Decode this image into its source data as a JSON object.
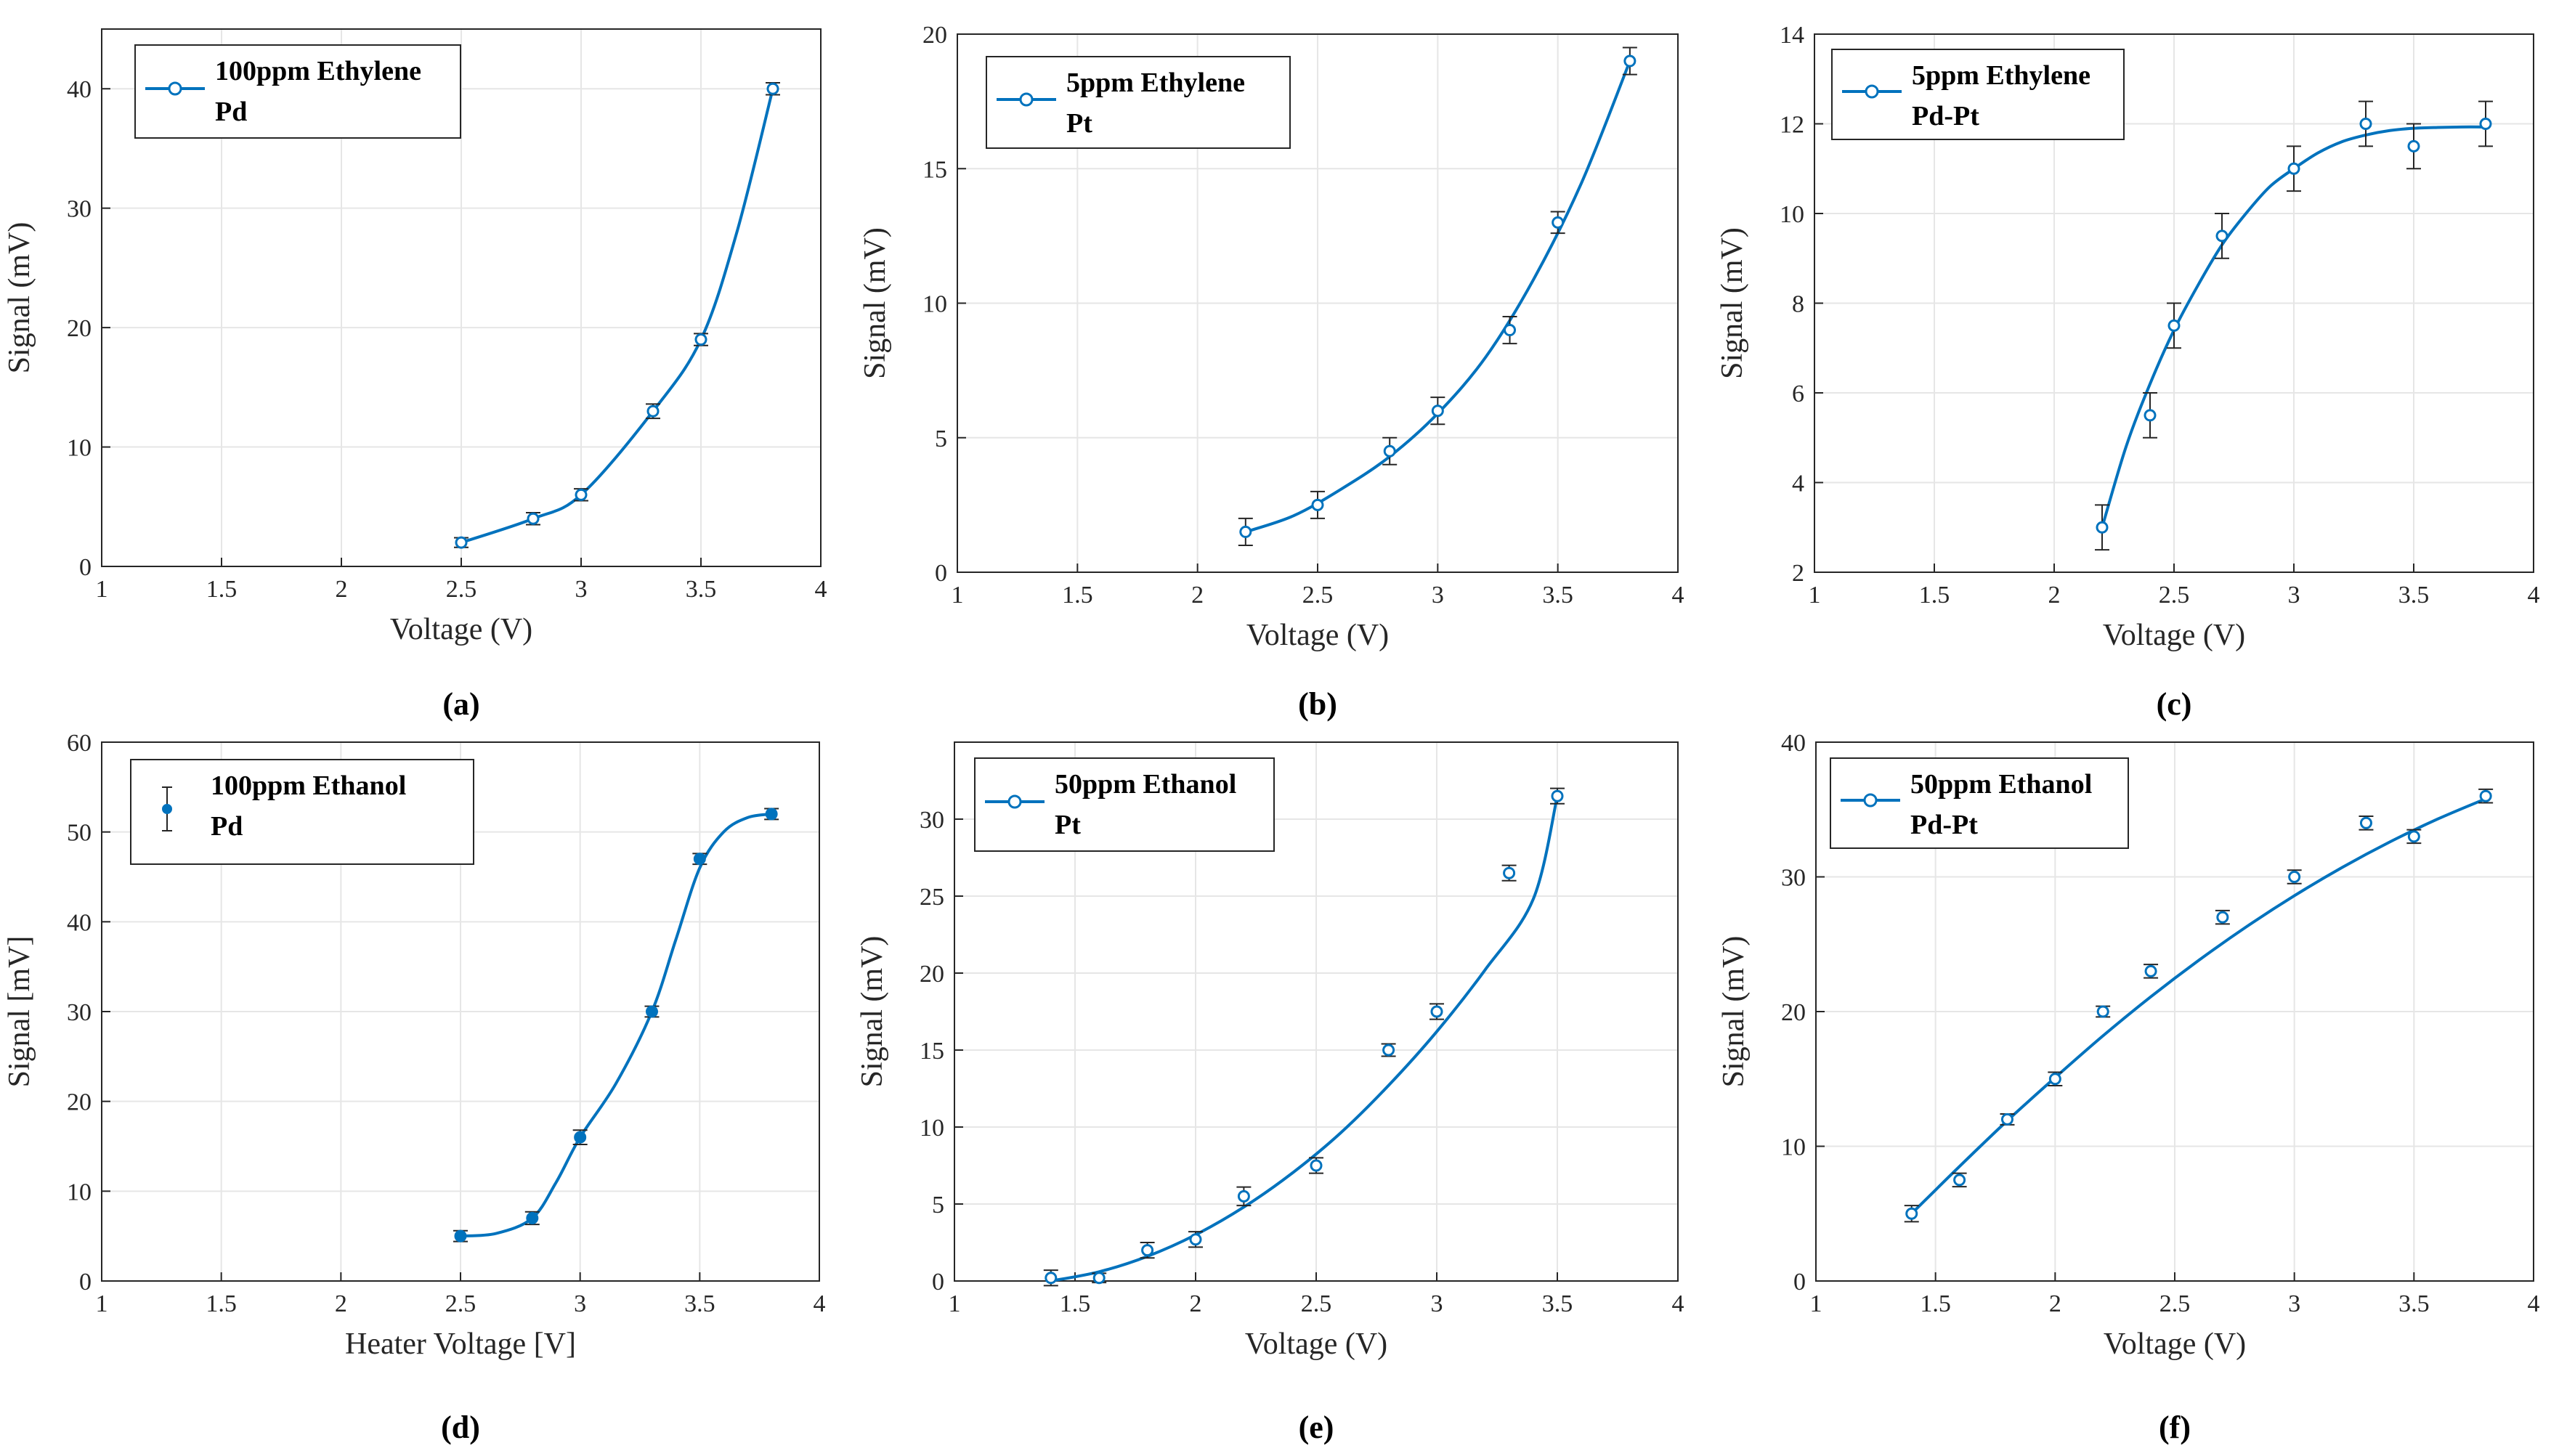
{
  "figure": {
    "panels": [
      {
        "id": "a",
        "caption": "(a)",
        "legend": [
          "100ppm Ethylene",
          "Pd"
        ],
        "marker": "circle"
      },
      {
        "id": "b",
        "caption": "(b)",
        "legend": [
          "5ppm Ethylene",
          "Pt"
        ],
        "marker": "circle"
      },
      {
        "id": "c",
        "caption": "(c)",
        "legend": [
          "5ppm Ethylene",
          "Pd-Pt"
        ],
        "marker": "circle"
      },
      {
        "id": "d",
        "caption": "(d)",
        "legend": [
          "100ppm Ethanol",
          "Pd"
        ],
        "marker": "errorbar-dot"
      },
      {
        "id": "e",
        "caption": "(e)",
        "legend": [
          "50ppm Ethanol",
          "Pt"
        ],
        "marker": "circle"
      },
      {
        "id": "f",
        "caption": "(f)",
        "legend": [
          "50ppm Ethanol",
          "Pd-Pt"
        ],
        "marker": "circle"
      }
    ]
  },
  "colors": {
    "series": "#0072BD",
    "axis": "#262626",
    "grid": "#e6e6e6"
  },
  "chart_data": [
    {
      "type": "line",
      "title": "(a)",
      "xlabel": "Voltage (V)",
      "ylabel": "Signal (mV)",
      "xlim": [
        1,
        4
      ],
      "ylim": [
        0,
        45
      ],
      "xticks": [
        1,
        1.5,
        2,
        2.5,
        3,
        3.5,
        4
      ],
      "xticklabels": [
        "1",
        "1.5",
        "2",
        "2.5",
        "3",
        "3.5",
        "4"
      ],
      "yticks": [
        0,
        10,
        20,
        30,
        40
      ],
      "yticklabels": [
        "0",
        "10",
        "20",
        "30",
        "40"
      ],
      "grid": true,
      "series": [
        {
          "name": "100ppm Ethylene Pd",
          "x": [
            2.5,
            2.8,
            3.0,
            3.3,
            3.5,
            3.8
          ],
          "y": [
            2,
            4,
            6,
            13,
            19,
            40
          ],
          "err": [
            0.4,
            0.5,
            0.5,
            0.6,
            0.5,
            0.5
          ]
        }
      ],
      "fit": {
        "x": [
          2.5,
          2.8,
          3.0,
          3.3,
          3.5,
          3.65,
          3.8
        ],
        "y": [
          2,
          4,
          6,
          13,
          19,
          28,
          40
        ]
      }
    },
    {
      "type": "line",
      "title": "(b)",
      "xlabel": "Voltage (V)",
      "ylabel": "Signal (mV)",
      "xlim": [
        1,
        4
      ],
      "ylim": [
        0,
        20
      ],
      "xticks": [
        1,
        1.5,
        2,
        2.5,
        3,
        3.5,
        4
      ],
      "xticklabels": [
        "1",
        "1.5",
        "2",
        "2.5",
        "3",
        "3.5",
        "4"
      ],
      "yticks": [
        0,
        5,
        10,
        15,
        20
      ],
      "yticklabels": [
        "0",
        "5",
        "10",
        "15",
        "20"
      ],
      "grid": true,
      "series": [
        {
          "name": "5ppm Ethylene Pt",
          "x": [
            2.2,
            2.5,
            2.8,
            3.0,
            3.3,
            3.5,
            3.8
          ],
          "y": [
            1.5,
            2.5,
            4.5,
            6.0,
            9.0,
            13.0,
            19.0
          ],
          "err": [
            0.5,
            0.5,
            0.5,
            0.5,
            0.5,
            0.4,
            0.5
          ]
        }
      ],
      "fit": {
        "x": [
          2.2,
          2.4,
          2.6,
          2.8,
          3.0,
          3.2,
          3.4,
          3.6,
          3.8
        ],
        "y": [
          1.5,
          2.1,
          3.1,
          4.3,
          5.9,
          8.0,
          10.9,
          14.5,
          19.0
        ]
      }
    },
    {
      "type": "line",
      "title": "(c)",
      "xlabel": "Voltage (V)",
      "ylabel": "Signal (mV)",
      "xlim": [
        1,
        4
      ],
      "ylim": [
        2,
        14
      ],
      "xticks": [
        1,
        1.5,
        2,
        2.5,
        3,
        3.5,
        4
      ],
      "xticklabels": [
        "1",
        "1.5",
        "2",
        "2.5",
        "3",
        "3.5",
        "4"
      ],
      "yticks": [
        2,
        4,
        6,
        8,
        10,
        12,
        14
      ],
      "yticklabels": [
        "2",
        "4",
        "6",
        "8",
        "10",
        "12",
        "14"
      ],
      "grid": true,
      "series": [
        {
          "name": "5ppm Ethylene Pd-Pt",
          "x": [
            2.2,
            2.4,
            2.5,
            2.7,
            3.0,
            3.3,
            3.5,
            3.8
          ],
          "y": [
            3.0,
            5.5,
            7.5,
            9.5,
            11.0,
            12.0,
            11.5,
            12.0
          ],
          "err": [
            0.5,
            0.5,
            0.5,
            0.5,
            0.5,
            0.5,
            0.5,
            0.5
          ]
        }
      ],
      "fit": {
        "x": [
          2.2,
          2.3,
          2.4,
          2.5,
          2.6,
          2.7,
          2.8,
          2.9,
          3.0,
          3.1,
          3.2,
          3.3,
          3.4,
          3.5,
          3.6,
          3.7,
          3.8
        ],
        "y": [
          3.0,
          4.8,
          6.2,
          7.4,
          8.4,
          9.3,
          10.0,
          10.6,
          11.0,
          11.35,
          11.6,
          11.75,
          11.85,
          11.9,
          11.92,
          11.93,
          11.93
        ]
      }
    },
    {
      "type": "line",
      "title": "(d)",
      "xlabel": "Heater Voltage [V]",
      "ylabel": "Signal [mV]",
      "xlim": [
        1,
        4
      ],
      "ylim": [
        0,
        60
      ],
      "xticks": [
        1,
        1.5,
        2,
        2.5,
        3,
        3.5,
        4
      ],
      "xticklabels": [
        "1",
        "1.5",
        "2",
        "2.5",
        "3",
        "3.5",
        "4"
      ],
      "yticks": [
        0,
        10,
        20,
        30,
        40,
        50,
        60
      ],
      "yticklabels": [
        "0",
        "10",
        "20",
        "30",
        "40",
        "50",
        "60"
      ],
      "grid": true,
      "series": [
        {
          "name": "100ppm Ethanol Pd",
          "x": [
            2.5,
            2.8,
            3.0,
            3.3,
            3.5,
            3.8
          ],
          "y": [
            5,
            7,
            16,
            30,
            47,
            52
          ],
          "err": [
            0.6,
            0.7,
            0.8,
            0.6,
            0.6,
            0.6
          ]
        }
      ],
      "fit": {
        "x": [
          2.5,
          2.65,
          2.8,
          2.9,
          3.0,
          3.15,
          3.3,
          3.4,
          3.5,
          3.6,
          3.7,
          3.8
        ],
        "y": [
          5,
          5.3,
          7,
          11,
          16,
          22,
          30,
          38,
          46,
          50,
          51.6,
          52
        ]
      }
    },
    {
      "type": "line",
      "title": "(e)",
      "xlabel": "Voltage (V)",
      "ylabel": "Signal (mV)",
      "xlim": [
        1,
        4
      ],
      "ylim": [
        0,
        35
      ],
      "xticks": [
        1,
        1.5,
        2,
        2.5,
        3,
        3.5,
        4
      ],
      "xticklabels": [
        "1",
        "1.5",
        "2",
        "2.5",
        "3",
        "3.5",
        "4"
      ],
      "yticks": [
        0,
        5,
        10,
        15,
        20,
        25,
        30
      ],
      "yticklabels": [
        "0",
        "5",
        "10",
        "15",
        "20",
        "25",
        "30"
      ],
      "grid": true,
      "series": [
        {
          "name": "50ppm Ethanol Pt",
          "x": [
            1.4,
            1.6,
            1.8,
            2.0,
            2.2,
            2.5,
            2.8,
            3.0,
            3.3,
            3.5
          ],
          "y": [
            0.2,
            0.2,
            2.0,
            2.7,
            5.5,
            7.5,
            15.0,
            17.5,
            26.5,
            31.5
          ],
          "err": [
            0.5,
            0.3,
            0.5,
            0.5,
            0.6,
            0.5,
            0.4,
            0.5,
            0.5,
            0.5
          ]
        }
      ],
      "fit": {
        "x": [
          1.4,
          1.6,
          1.8,
          2.0,
          2.2,
          2.4,
          2.6,
          2.8,
          3.0,
          3.2,
          3.4,
          3.5
        ],
        "y": [
          0,
          0.6,
          1.6,
          3.0,
          4.8,
          7.0,
          9.6,
          12.7,
          16.2,
          20.2,
          24.8,
          31.5
        ]
      }
    },
    {
      "type": "line",
      "title": "(f)",
      "xlabel": "Voltage (V)",
      "ylabel": "Signal (mV)",
      "xlim": [
        1,
        4
      ],
      "ylim": [
        0,
        40
      ],
      "xticks": [
        1,
        1.5,
        2,
        2.5,
        3,
        3.5,
        4
      ],
      "xticklabels": [
        "1",
        "1.5",
        "2",
        "2.5",
        "3",
        "3.5",
        "4"
      ],
      "yticks": [
        0,
        10,
        20,
        30,
        40
      ],
      "yticklabels": [
        "0",
        "10",
        "20",
        "30",
        "40"
      ],
      "grid": true,
      "series": [
        {
          "name": "50ppm Ethanol Pd-Pt",
          "x": [
            1.4,
            1.6,
            1.8,
            2.0,
            2.2,
            2.4,
            2.7,
            3.0,
            3.3,
            3.5,
            3.8
          ],
          "y": [
            5.0,
            7.5,
            12.0,
            15.0,
            20.0,
            23.0,
            27.0,
            30.0,
            34.0,
            33.0,
            36.0
          ],
          "err": [
            0.6,
            0.5,
            0.4,
            0.5,
            0.4,
            0.5,
            0.5,
            0.5,
            0.5,
            0.5,
            0.5
          ]
        }
      ],
      "fit": {
        "x": [
          1.4,
          1.6,
          1.8,
          2.0,
          2.2,
          2.4,
          2.6,
          2.8,
          3.0,
          3.2,
          3.4,
          3.6,
          3.8
        ],
        "y": [
          5.0,
          8.5,
          11.9,
          15.1,
          18.2,
          21.1,
          23.8,
          26.3,
          28.6,
          30.7,
          32.6,
          34.3,
          35.8
        ]
      }
    }
  ]
}
